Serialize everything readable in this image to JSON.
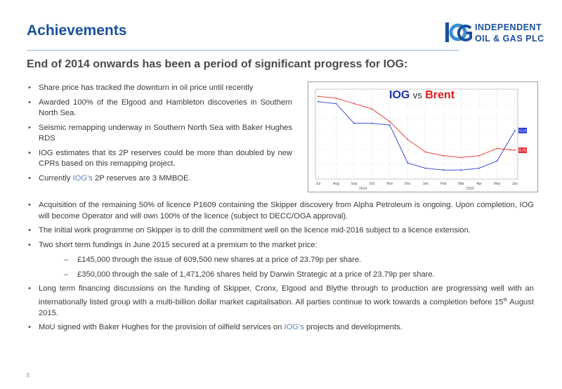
{
  "header": {
    "title": "Achievements",
    "logo_line1": "INDEPENDENT",
    "logo_line2": "OIL & GAS PLC"
  },
  "subtitle": "End of 2014 onwards has been a period of significant progress for IOG:",
  "top_bullets": [
    "Share price has tracked the downturn in oil price until recently",
    "Awarded 100% of the Elgood and Hambleton discoveries in Southern North Sea.",
    "Seismic remapping underway in Southern North Sea with Baker Hughes RDS",
    "IOG estimates that its 2P reserves could be more than doubled by new CPRs based on this remapping project.",
    {
      "pre": "Currently ",
      "hl": "IOG’s",
      "post": " 2P reserves are 3 MMBOE."
    }
  ],
  "bottom_bullets": {
    "b1": "Acquisition of the remaining 50% of licence P1609 containing the Skipper discovery from Alpha Petroleum is ongoing.  Upon completion, IOG will become Operator and will own 100% of the licence (subject to DECC/OGA approval).",
    "b2": "The initial work programme on Skipper is to drill the commitment well on the licence mid-2016 subject to a licence extension.",
    "b3": "Two short term fundings in June 2015 secured at a premium to the market price:",
    "b3_sub1": "£145,000 through the issue of 609,500 new shares at a price of 23.79p per share.",
    "b3_sub2": "£350,000 through the sale of 1,471,206 shares held by Darwin Strategic at a price of 23.79p per share.",
    "b4_pre": "Long term financing discussions on the funding of Skipper, Cronx, Elgood and Blythe through to production are progressing well with an internationally listed group with a multi-billion dollar market capitalisation.  All parties continue to work towards a completion before 15",
    "b4_sup": "th",
    "b4_post": " August 2015.",
    "b5_pre": "MoU signed with Baker Hughes for the provision of oilfield services on ",
    "b5_hl": "IOG’s",
    "b5_post": " projects and developments."
  },
  "chart_title": {
    "iog": "IOG",
    "vs": "vs",
    "brent": "Brent"
  },
  "chart_data": {
    "type": "line",
    "x_tick_labels": [
      "Jul",
      "Aug",
      "Sep",
      "Oct",
      "Nov",
      "Dec",
      "Jan",
      "Feb",
      "Mar",
      "Apr",
      "May",
      "Jun"
    ],
    "year_labels": [
      "2014",
      "2015"
    ],
    "series": [
      {
        "color": "#2b3bd6",
        "values": [
          0.86,
          0.84,
          0.62,
          0.62,
          0.6,
          0.18,
          0.12,
          0.1,
          0.1,
          0.12,
          0.2,
          0.54
        ]
      },
      {
        "color": "#e53030",
        "values": [
          0.92,
          0.9,
          0.84,
          0.78,
          0.64,
          0.44,
          0.3,
          0.26,
          0.24,
          0.26,
          0.34,
          0.32
        ]
      }
    ],
    "end_labels": [
      "0.13",
      "0.75"
    ]
  },
  "footer": {
    "page_number": "5"
  }
}
